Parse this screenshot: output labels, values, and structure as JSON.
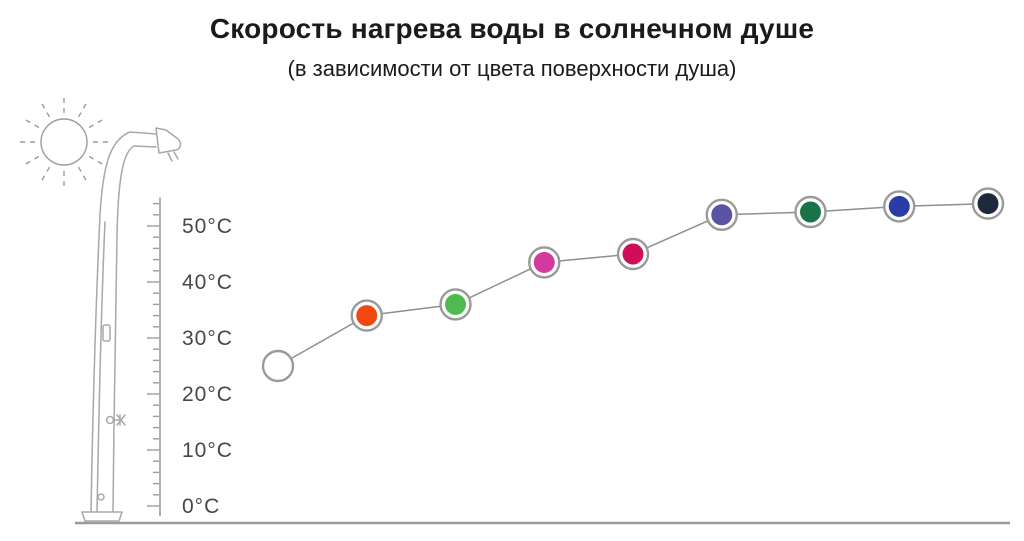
{
  "title": "Скорость нагрева воды в солнечном душе",
  "subtitle": "(в зависимости от цвета поверхности душа)",
  "colors": {
    "series_line": "#8f8f8f",
    "marker_ring": "#9a9a9a",
    "ruler": "#9b9b9b",
    "artwork": "#a8a8a8",
    "baseline": "#9b9b9b",
    "text": "#1b1b1b"
  },
  "icons": [
    "sun-icon",
    "solar-shower-icon"
  ],
  "chart_data": {
    "type": "line",
    "title": "Скорость нагрева воды в солнечном душе",
    "subtitle": "(в зависимости от цвета поверхности душа)",
    "xlabel": "",
    "ylabel": "",
    "ylim": [
      0,
      55
    ],
    "y_ticks": [
      0,
      10,
      20,
      30,
      40,
      50
    ],
    "y_tick_labels": [
      "0°C",
      "10°C",
      "20°C",
      "30°C",
      "40°C",
      "50°C"
    ],
    "grid": false,
    "legend": false,
    "points": [
      {
        "color_name": "white",
        "hex": "#ffffff",
        "temp_c": 25
      },
      {
        "color_name": "orange",
        "hex": "#f2470e",
        "temp_c": 34
      },
      {
        "color_name": "green",
        "hex": "#4eba50",
        "temp_c": 36
      },
      {
        "color_name": "pink",
        "hex": "#d23a9e",
        "temp_c": 43.5
      },
      {
        "color_name": "crimson",
        "hex": "#ce0f57",
        "temp_c": 45
      },
      {
        "color_name": "violet",
        "hex": "#5a53a3",
        "temp_c": 52
      },
      {
        "color_name": "dark-green",
        "hex": "#187348",
        "temp_c": 52.5
      },
      {
        "color_name": "blue",
        "hex": "#2a3ca6",
        "temp_c": 53.5
      },
      {
        "color_name": "dark-navy",
        "hex": "#1c2a39",
        "temp_c": 54
      }
    ]
  }
}
